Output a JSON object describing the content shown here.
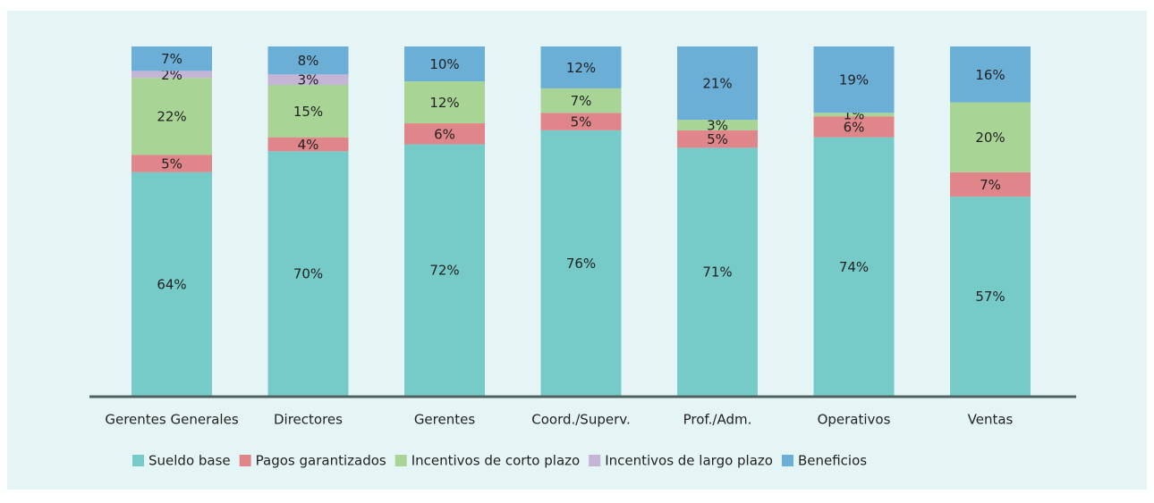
{
  "chart_data": {
    "type": "stacked_bar",
    "categories": [
      "Gerentes Generales",
      "Directores",
      "Gerentes",
      "Coord./Superv.",
      "Prof./Adm.",
      "Operativos",
      "Ventas"
    ],
    "ylim": [
      0,
      100
    ],
    "series": [
      {
        "name": "Sueldo base",
        "color": "#76cbc8",
        "values": [
          64,
          70,
          72,
          76,
          71,
          74,
          57
        ],
        "value_labels": [
          "64%",
          "70%",
          "72%",
          "76%",
          "71%",
          "74%",
          "57%"
        ]
      },
      {
        "name": "Pagos garantizados",
        "color": "#e0868a",
        "values": [
          5,
          4,
          6,
          5,
          5,
          6,
          7
        ],
        "value_labels": [
          "5%",
          "4%",
          "6%",
          "5%",
          "5%",
          "6%",
          "7%"
        ]
      },
      {
        "name": "Incentivos de corto plazo",
        "color": "#a8d596",
        "values": [
          22,
          15,
          12,
          7,
          3,
          1,
          20
        ],
        "value_labels": [
          "22%",
          "15%",
          "12%",
          "7%",
          "3%",
          "1%",
          "20%"
        ]
      },
      {
        "name": "Incentivos de largo plazo",
        "color": "#c4b5d6",
        "values": [
          2,
          3,
          null,
          null,
          null,
          null,
          null
        ],
        "value_labels": [
          "2%",
          "3%",
          null,
          null,
          null,
          null,
          null
        ]
      },
      {
        "name": "Beneficios",
        "color": "#6baed6",
        "values": [
          7,
          8,
          10,
          12,
          21,
          19,
          16
        ],
        "value_labels": [
          "7%",
          "8%",
          "10%",
          "12%",
          "21%",
          "19%",
          "16%"
        ]
      }
    ]
  }
}
